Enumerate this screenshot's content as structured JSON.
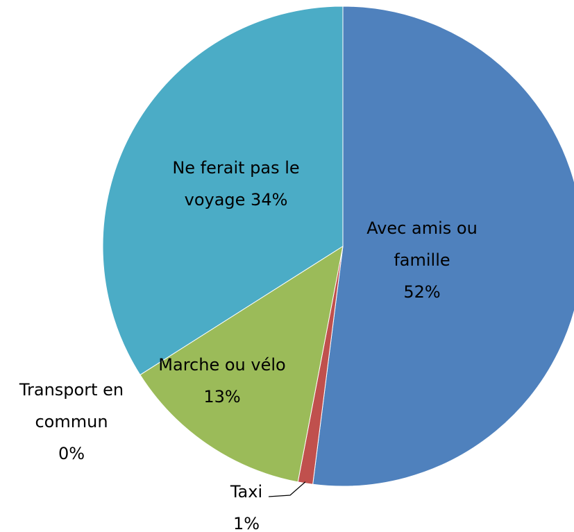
{
  "chart_data": {
    "type": "pie",
    "categories": [
      "Avec amis ou famille",
      "Taxi",
      "Marche ou vélo",
      "Transport en commun",
      "Ne ferait pas le voyage"
    ],
    "values": [
      52,
      1,
      13,
      0,
      34
    ],
    "value_labels": [
      "52%",
      "1%",
      "13%",
      "0%",
      "34%"
    ],
    "colors": [
      "#4f81bd",
      "#c0504d",
      "#9bbb59",
      "#8064a2",
      "#4bacc6"
    ]
  }
}
